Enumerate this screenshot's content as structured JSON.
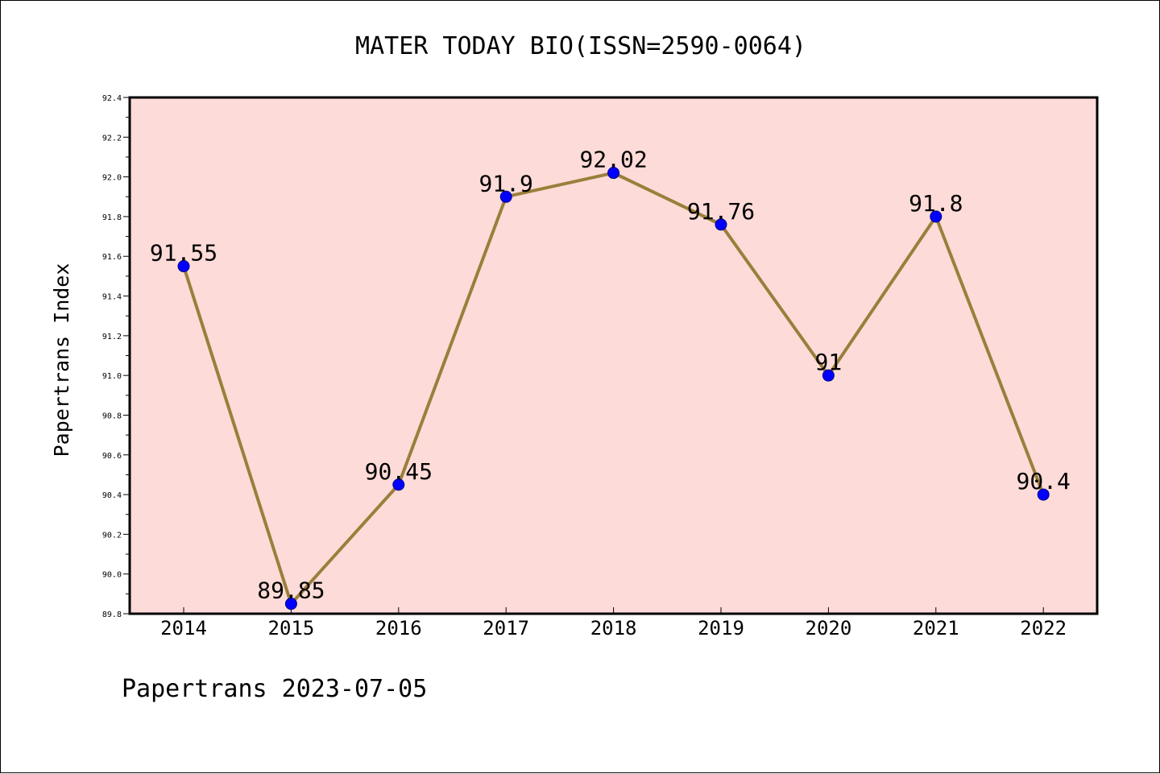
{
  "chart_data": {
    "type": "line",
    "title": "MATER TODAY BIO(ISSN=2590-0064)",
    "xlabel": "",
    "ylabel": "Papertrans Index",
    "categories": [
      "2014",
      "2015",
      "2016",
      "2017",
      "2018",
      "2019",
      "2020",
      "2021",
      "2022"
    ],
    "values": [
      91.55,
      89.85,
      90.45,
      91.9,
      92.02,
      91.76,
      91.0,
      91.8,
      90.4
    ],
    "data_labels": [
      "91.55",
      "89.85",
      "90.45",
      "91.9",
      "92.02",
      "91.76",
      "91",
      "91.8",
      "90.4"
    ],
    "ylim": [
      89.8,
      92.4
    ],
    "yticks": [
      "89.8",
      "90.0",
      "90.2",
      "90.4",
      "90.6",
      "90.8",
      "91.0",
      "91.2",
      "91.4",
      "91.6",
      "91.8",
      "92.0",
      "92.2",
      "92.4"
    ],
    "grid": false,
    "legend": "none",
    "colors": {
      "plot_background": "#fddbd8",
      "line": "#9a7f3a",
      "marker": "#0000ff"
    }
  },
  "footer": "Papertrans 2023-07-05"
}
